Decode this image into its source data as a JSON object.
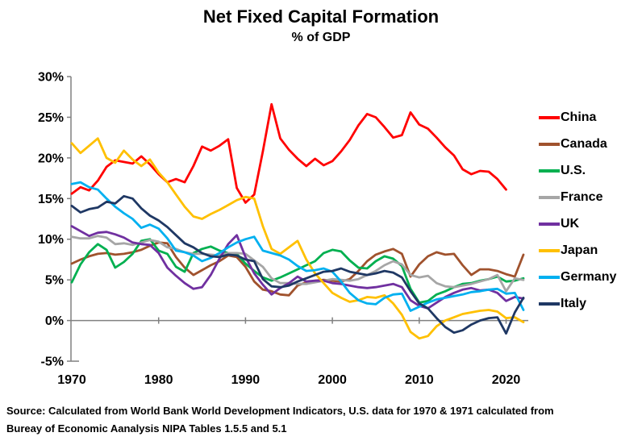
{
  "title": "Net Fixed Capital Formation",
  "subtitle": "% of GDP",
  "source": {
    "line1": "Source:  Calculated from World Bank World Development Indicators, U.S. data for 1970 & 1971 calculated from",
    "line2": "Bureay of Economic Aanalysis NIPA Tables 1.5.5 and 5.1"
  },
  "chart_data": {
    "type": "line",
    "title": "Net Fixed Capital Formation",
    "subtitle": "% of GDP",
    "xlabel": "",
    "ylabel": "",
    "x_start_year": 1970,
    "x_end_year": 2022,
    "x_tick_years": [
      1970,
      1980,
      1990,
      2000,
      2010,
      2020
    ],
    "x_tick_labels": [
      "1970",
      "1980",
      "1990",
      "2000",
      "2010",
      "2020"
    ],
    "y_ticks": [
      30,
      25,
      20,
      15,
      10,
      5,
      0,
      -5
    ],
    "y_tick_labels": [
      "30%",
      "25%",
      "20%",
      "15%",
      "10%",
      "5%",
      "0%",
      "-5%"
    ],
    "ylim": [
      -5,
      30
    ],
    "grid": "zero-line-only",
    "legend_position": "right",
    "axis_color": "#808080",
    "zero_line_color": "#808080",
    "series": [
      {
        "name": "China",
        "color": "#FF0000",
        "start_year": 1970,
        "values": [
          15.6,
          16.4,
          16.0,
          17.2,
          18.9,
          19.7,
          19.5,
          19.3,
          20.2,
          19.2,
          18.0,
          17.0,
          17.4,
          17.0,
          19.0,
          21.4,
          20.9,
          21.5,
          22.3,
          16.3,
          14.5,
          15.5,
          20.8,
          26.6,
          22.4,
          21.0,
          19.9,
          19.0,
          19.9,
          19.1,
          19.6,
          20.8,
          22.2,
          24.0,
          25.4,
          25.0,
          23.8,
          22.5,
          22.8,
          25.6,
          24.1,
          23.6,
          22.5,
          21.3,
          20.3,
          18.6,
          18.0,
          18.4,
          18.3,
          17.4,
          16.1
        ]
      },
      {
        "name": "Canada",
        "color": "#A0522D",
        "start_year": 1970,
        "values": [
          7.0,
          7.5,
          7.9,
          8.2,
          8.3,
          8.1,
          8.2,
          8.4,
          8.7,
          9.2,
          9.6,
          9.5,
          7.8,
          6.5,
          5.6,
          6.2,
          6.8,
          7.3,
          8.0,
          7.8,
          6.6,
          4.8,
          3.8,
          3.6,
          3.2,
          3.1,
          4.3,
          4.7,
          4.9,
          5.0,
          4.9,
          4.8,
          5.1,
          6.1,
          7.3,
          8.1,
          8.5,
          8.8,
          8.2,
          5.4,
          6.9,
          7.9,
          8.4,
          8.1,
          8.2,
          6.8,
          5.6,
          6.3,
          6.3,
          6.1,
          5.7,
          5.4,
          8.1
        ]
      },
      {
        "name": "U.S.",
        "color": "#00B050",
        "start_year": 1970,
        "values": [
          4.7,
          6.9,
          8.4,
          9.4,
          8.7,
          6.5,
          7.2,
          8.2,
          9.8,
          10.0,
          8.6,
          8.2,
          6.6,
          6.0,
          8.3,
          8.8,
          9.1,
          8.6,
          8.3,
          8.2,
          7.0,
          6.1,
          5.3,
          4.9,
          5.3,
          5.8,
          6.3,
          6.8,
          7.3,
          8.3,
          8.7,
          8.5,
          7.4,
          6.5,
          6.4,
          7.3,
          7.9,
          7.6,
          6.7,
          3.9,
          2.2,
          2.4,
          3.2,
          3.6,
          4.1,
          4.5,
          4.6,
          4.9,
          5.1,
          5.4,
          4.8,
          4.9,
          5.2
        ]
      },
      {
        "name": "France",
        "color": "#A6A6A6",
        "start_year": 1970,
        "values": [
          10.3,
          10.1,
          10.1,
          10.4,
          10.2,
          9.4,
          9.5,
          9.3,
          9.6,
          9.9,
          9.7,
          9.0,
          8.8,
          8.4,
          8.2,
          8.2,
          8.1,
          8.0,
          8.3,
          8.3,
          8.2,
          7.4,
          6.6,
          5.2,
          4.6,
          4.6,
          4.5,
          4.5,
          4.7,
          4.9,
          5.1,
          5.0,
          4.9,
          5.1,
          5.6,
          6.1,
          6.8,
          7.3,
          6.9,
          5.6,
          5.3,
          5.5,
          4.6,
          4.2,
          4.1,
          4.3,
          4.5,
          4.8,
          5.1,
          5.6,
          3.6,
          5.2,
          5.0
        ]
      },
      {
        "name": "UK",
        "color": "#7030A0",
        "start_year": 1970,
        "values": [
          11.6,
          11.0,
          10.4,
          10.8,
          10.9,
          10.6,
          10.2,
          9.6,
          9.4,
          9.3,
          8.3,
          6.5,
          5.5,
          4.6,
          3.9,
          4.1,
          5.6,
          7.6,
          9.4,
          10.5,
          7.8,
          5.8,
          4.4,
          3.2,
          4.0,
          4.6,
          5.4,
          4.8,
          4.9,
          4.9,
          4.6,
          4.5,
          4.3,
          4.1,
          4.0,
          4.1,
          4.3,
          4.5,
          4.1,
          2.5,
          1.8,
          1.5,
          2.2,
          2.9,
          3.4,
          3.8,
          4.0,
          3.7,
          3.8,
          3.4,
          2.4,
          2.9,
          2.7
        ]
      },
      {
        "name": "Japan",
        "color": "#FFC000",
        "start_year": 1970,
        "values": [
          21.8,
          20.6,
          21.5,
          22.4,
          20.0,
          19.4,
          20.9,
          19.8,
          19.0,
          19.8,
          18.2,
          17.0,
          15.5,
          14.0,
          12.8,
          12.5,
          13.1,
          13.6,
          14.2,
          14.8,
          15.2,
          15.0,
          11.6,
          8.8,
          8.2,
          9.0,
          9.8,
          7.5,
          5.8,
          4.6,
          3.4,
          2.8,
          2.3,
          2.5,
          2.9,
          2.8,
          3.1,
          2.1,
          0.7,
          -1.4,
          -2.2,
          -1.9,
          -0.7,
          0.0,
          0.4,
          0.8,
          1.0,
          1.2,
          1.3,
          1.1,
          0.3,
          0.4,
          -0.2
        ]
      },
      {
        "name": "Germany",
        "color": "#00B0F0",
        "start_year": 1970,
        "values": [
          16.8,
          17.0,
          16.4,
          16.1,
          15.0,
          14.0,
          13.2,
          12.5,
          11.4,
          11.8,
          11.3,
          10.1,
          8.6,
          8.4,
          8.0,
          7.3,
          7.7,
          8.3,
          9.0,
          9.6,
          10.0,
          10.3,
          8.6,
          8.3,
          8.0,
          7.5,
          6.7,
          6.1,
          6.2,
          6.4,
          6.0,
          4.8,
          3.4,
          2.5,
          2.1,
          2.0,
          2.8,
          3.2,
          3.3,
          1.2,
          1.7,
          2.2,
          2.6,
          2.8,
          3.0,
          3.2,
          3.5,
          3.6,
          3.8,
          3.9,
          3.3,
          3.4,
          1.3
        ]
      },
      {
        "name": "Italy",
        "color": "#1F3864",
        "start_year": 1970,
        "values": [
          14.1,
          13.3,
          13.7,
          13.9,
          14.6,
          14.4,
          15.3,
          15.0,
          13.8,
          12.9,
          12.3,
          11.5,
          10.5,
          9.5,
          9.0,
          8.3,
          7.9,
          7.8,
          8.1,
          8.0,
          7.5,
          7.3,
          5.1,
          4.2,
          4.1,
          4.3,
          4.8,
          5.2,
          5.6,
          6.0,
          6.1,
          6.4,
          6.0,
          5.8,
          5.6,
          5.8,
          6.1,
          5.9,
          5.3,
          3.6,
          2.1,
          1.5,
          0.3,
          -0.8,
          -1.5,
          -1.2,
          -0.5,
          0.0,
          0.3,
          0.4,
          -1.6,
          1.0,
          2.8
        ]
      }
    ]
  }
}
